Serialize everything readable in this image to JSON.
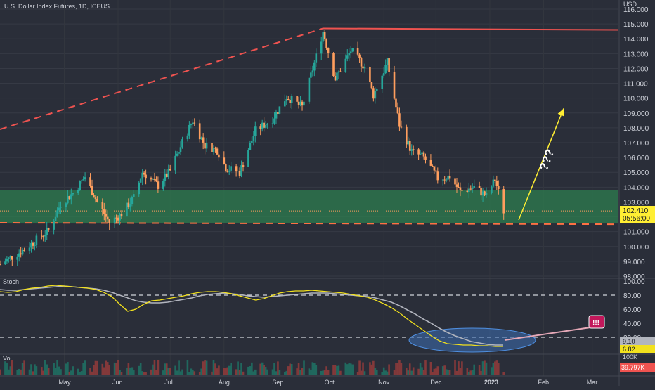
{
  "header": {
    "symbol_title": "U.S. Dollar Index Futures, 1D, ICEUS",
    "currency": "USD"
  },
  "colors": {
    "background": "#2a2e39",
    "up": "#26a69a",
    "down": "#ff9e5e",
    "trend": "#ef5350",
    "zone": "#2e7d4f",
    "support": "#ff7043",
    "arrow": "#ffee33",
    "stoch_k": "#f2e11e",
    "stoch_d": "#b2b5be",
    "annotation_circle": "#3d6fb5",
    "badge": "#c2185b"
  },
  "chart_data": [
    {
      "type": "candlestick",
      "title": "U.S. Dollar Index Futures, 1D, ICEUS",
      "ylabel": "USD",
      "ylim": [
        98.0,
        116.0
      ],
      "y_ticks": [
        "116.000",
        "115.000",
        "114.000",
        "113.000",
        "112.000",
        "111.000",
        "110.000",
        "109.000",
        "108.000",
        "107.000",
        "106.000",
        "105.000",
        "104.000",
        "103.000",
        "102.000",
        "101.000",
        "100.000",
        "99.000",
        "98.000"
      ],
      "x_labels": [
        "May",
        "Jun",
        "Jul",
        "Aug",
        "Sep",
        "Oct",
        "Nov",
        "Dec",
        "2023",
        "Feb",
        "Mar"
      ],
      "last_price": "102.410",
      "countdown": "05:56:00",
      "series": [
        {
          "points": [
            [
              "2022-03-25",
              98.8
            ],
            [
              "2022-04-08",
              99.8
            ],
            [
              "2022-04-22",
              101.1
            ],
            [
              "2022-04-29",
              102.9
            ],
            [
              "2022-05-06",
              103.6
            ],
            [
              "2022-05-13",
              104.7
            ],
            [
              "2022-05-20",
              103.0
            ],
            [
              "2022-05-27",
              101.6
            ],
            [
              "2022-06-03",
              102.2
            ],
            [
              "2022-06-10",
              103.3
            ],
            [
              "2022-06-15",
              105.0
            ],
            [
              "2022-06-24",
              104.1
            ],
            [
              "2022-07-01",
              105.1
            ],
            [
              "2022-07-08",
              107.0
            ],
            [
              "2022-07-14",
              108.5
            ],
            [
              "2022-07-21",
              106.8
            ],
            [
              "2022-07-28",
              106.5
            ],
            [
              "2022-08-02",
              105.3
            ],
            [
              "2022-08-10",
              105.0
            ],
            [
              "2022-08-19",
              107.8
            ],
            [
              "2022-08-29",
              108.6
            ],
            [
              "2022-09-06",
              110.1
            ],
            [
              "2022-09-15",
              109.4
            ],
            [
              "2022-09-23",
              112.8
            ],
            [
              "2022-09-27",
              114.5
            ],
            [
              "2022-10-04",
              111.3
            ],
            [
              "2022-10-13",
              113.2
            ],
            [
              "2022-10-21",
              112.1
            ],
            [
              "2022-10-26",
              110.2
            ],
            [
              "2022-11-03",
              112.4
            ],
            [
              "2022-11-10",
              108.2
            ],
            [
              "2022-11-17",
              106.4
            ],
            [
              "2022-11-24",
              106.0
            ],
            [
              "2022-12-02",
              104.6
            ],
            [
              "2022-12-09",
              104.7
            ],
            [
              "2022-12-15",
              103.7
            ],
            [
              "2022-12-23",
              104.0
            ],
            [
              "2022-12-30",
              103.4
            ],
            [
              "2023-01-04",
              104.5
            ],
            [
              "2023-01-09",
              102.4
            ]
          ]
        }
      ],
      "annotations": {
        "resistance_level": 114.7,
        "zone": [
          101.55,
          103.8
        ],
        "support_level": 101.55,
        "target_text": "???",
        "projected_target": 109.3
      }
    },
    {
      "type": "line",
      "title": "Stoch",
      "ylim": [
        0,
        100
      ],
      "y_ticks": [
        "100.00",
        "80.00",
        "60.00",
        "40.00",
        "20.00"
      ],
      "levels": [
        20,
        80
      ],
      "current_values": [
        "9.10",
        "6.82"
      ],
      "badge_text": "!!!",
      "series": [
        {
          "points": [
            85,
            84,
            85,
            88,
            90,
            91,
            93,
            94,
            93,
            92,
            91,
            90,
            88,
            84,
            78,
            67,
            57,
            60,
            67,
            72,
            73,
            75,
            77,
            79,
            82,
            84,
            85,
            85,
            84,
            82,
            79,
            76,
            73,
            75,
            79,
            83,
            85,
            86,
            86,
            87,
            86,
            85,
            84,
            83,
            81,
            79,
            77,
            73,
            68,
            62,
            55,
            46,
            38,
            30,
            22,
            15,
            11,
            10,
            9,
            9,
            8,
            8,
            7,
            7
          ]
        },
        {
          "points": [
            88,
            87,
            87,
            88,
            89,
            90,
            91,
            92,
            93,
            92,
            91,
            90,
            89,
            87,
            84,
            80,
            76,
            72,
            70,
            69,
            69,
            70,
            72,
            74,
            76,
            79,
            81,
            82,
            83,
            82,
            81,
            79,
            78,
            77,
            78,
            79,
            80,
            81,
            82,
            83,
            83,
            83,
            82,
            81,
            80,
            79,
            78,
            76,
            73,
            70,
            65,
            59,
            53,
            46,
            40,
            33,
            27,
            22,
            18,
            14,
            12,
            10,
            9,
            9
          ]
        }
      ]
    },
    {
      "type": "bar",
      "title": "Vol",
      "y_ticks": [
        "100K"
      ],
      "last_value": "39.797K"
    }
  ]
}
